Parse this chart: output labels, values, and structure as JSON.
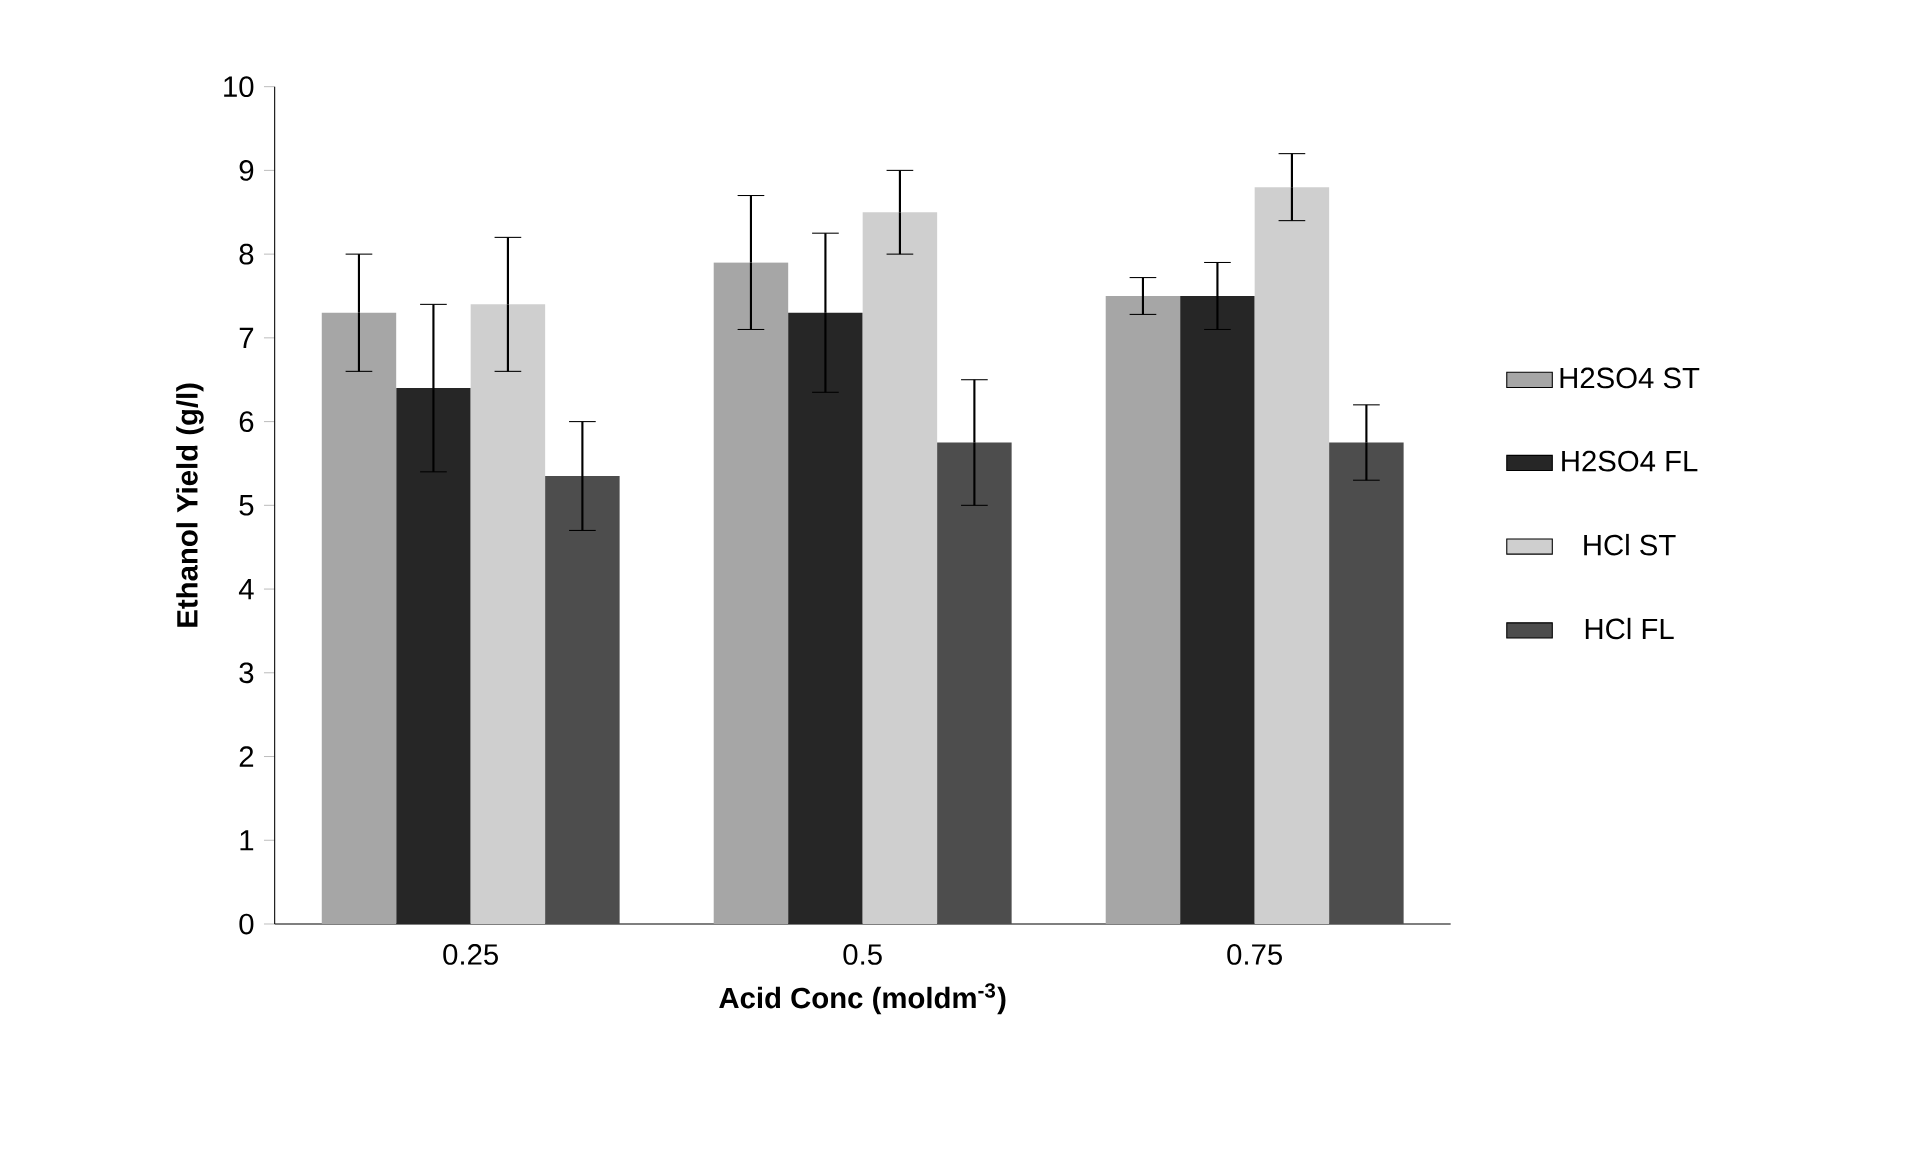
{
  "chart_data": {
    "type": "bar",
    "xlabel": "Acid Conc (moldm$^{-3}$)",
    "ylabel": "Ethanol Yield (g/l)",
    "categories": [
      "0.25",
      "0.5",
      "0.75"
    ],
    "ylim": [
      0,
      10
    ],
    "yticks": [
      0,
      1,
      2,
      3,
      4,
      5,
      6,
      7,
      8,
      9,
      10
    ],
    "legend": "right",
    "grid": false,
    "series": [
      {
        "name": "H2SO4 ST",
        "color": "#a6a6a6",
        "values": [
          7.3,
          7.9,
          7.5
        ],
        "errors": [
          0.7,
          0.8,
          0.22
        ]
      },
      {
        "name": "H2SO4 FL",
        "color": "#262626",
        "values": [
          6.4,
          7.3,
          7.5
        ],
        "errors": [
          1.0,
          0.95,
          0.4
        ]
      },
      {
        "name": "HCl ST",
        "color": "#cfcfcf",
        "values": [
          7.4,
          8.5,
          8.8
        ],
        "errors": [
          0.8,
          0.5,
          0.4
        ]
      },
      {
        "name": "HCl FL",
        "color": "#4d4d4d",
        "values": [
          5.35,
          5.75,
          5.75
        ],
        "errors": [
          0.65,
          0.75,
          0.45
        ]
      }
    ]
  }
}
